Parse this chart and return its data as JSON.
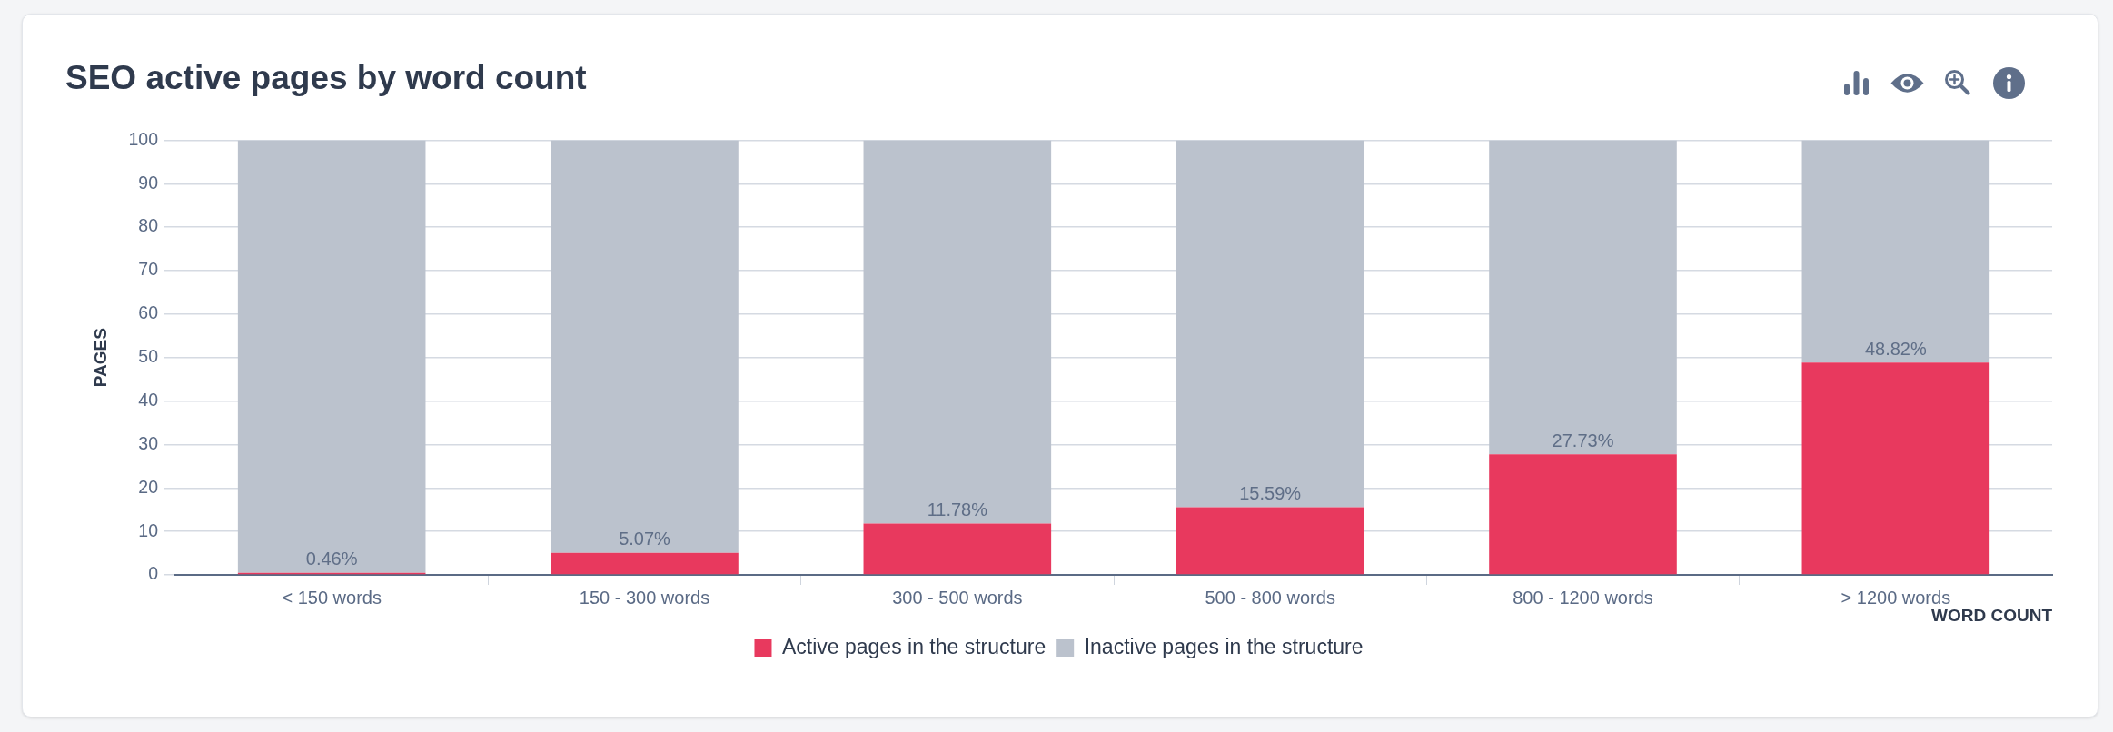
{
  "chart_data": {
    "type": "bar",
    "title": "SEO active pages by word count",
    "xlabel": "WORD COUNT",
    "ylabel": "PAGES",
    "categories": [
      "< 150 words",
      "150 - 300 words",
      "300 - 500 words",
      "500 - 800 words",
      "800 - 1200 words",
      "> 1200 words"
    ],
    "series": [
      {
        "name": "Active pages in the structure",
        "color": "#e8395e",
        "values": [
          0.46,
          5.07,
          11.78,
          15.59,
          27.73,
          48.82
        ],
        "value_labels": [
          "0.46%",
          "5.07%",
          "11.78%",
          "15.59%",
          "27.73%",
          "48.82%"
        ]
      },
      {
        "name": "Inactive pages in the structure",
        "color": "#bbc2cd",
        "values": [
          99.54,
          94.93,
          88.22,
          84.41,
          72.27,
          51.18
        ]
      }
    ],
    "stacked": true,
    "ylim": [
      0,
      100
    ],
    "yticks": [
      0,
      10,
      20,
      30,
      40,
      50,
      60,
      70,
      80,
      90,
      100
    ],
    "grid": "y",
    "legend": "bottom"
  }
}
